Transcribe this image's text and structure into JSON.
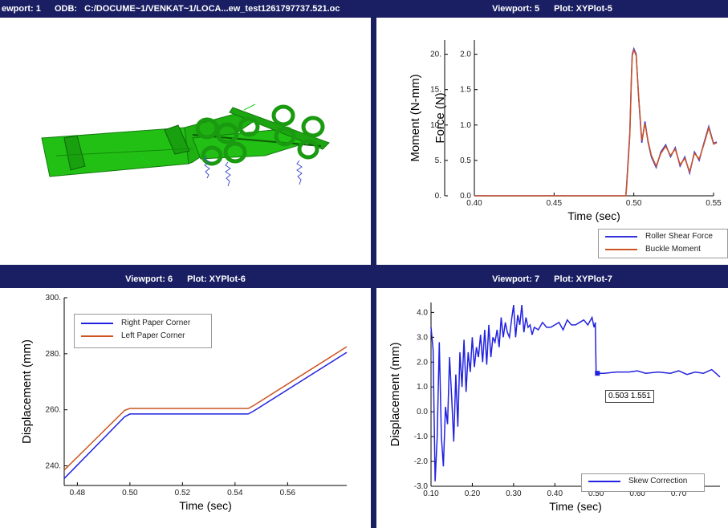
{
  "viewports": {
    "vp1": {
      "label": "ewport: 1",
      "odb_label": "ODB:",
      "path": "C:/DOCUME~1/VENKAT~1/LOCA...ew_test1261797737.521.oc"
    },
    "vp5": {
      "viewport": "Viewport: 5",
      "plot": "Plot: XYPlot-5"
    },
    "vp6": {
      "viewport": "Viewport: 6",
      "plot": "Plot: XYPlot-6"
    },
    "vp7": {
      "viewport": "Viewport: 7",
      "plot": "Plot: XYPlot-7"
    }
  },
  "colors": {
    "title_bar": "#1a1f63",
    "model_green": "#22c014",
    "blue": "#2222e0",
    "orange": "#cc5522",
    "spring": "#4455cc"
  },
  "chart_data": [
    {
      "id": "xyplot5",
      "type": "line",
      "xlabel": "Time (sec)",
      "ylabel": "Force (N)",
      "ylabel2": "Moment (N-mm)",
      "xticks": [
        "0.40",
        "0.45",
        "0.50",
        "0.55"
      ],
      "yticks": [
        "0.0",
        "0.5",
        "1.0",
        "1.5",
        "2.0"
      ],
      "yticks2": [
        "0.",
        "5.",
        "10.",
        "15.",
        "20."
      ],
      "xlim": [
        0.4,
        0.55
      ],
      "ylim": [
        0,
        2.2
      ],
      "legend_position": "bottom-right",
      "series": [
        {
          "name": "Roller Shear Force",
          "color": "#3333dd",
          "x": [
            0.4,
            0.44,
            0.47,
            0.495,
            0.4955,
            0.4975,
            0.4985,
            0.499,
            0.5,
            0.5015,
            0.503,
            0.505,
            0.507,
            0.509,
            0.511,
            0.514,
            0.517,
            0.52,
            0.523,
            0.526,
            0.529,
            0.532,
            0.535,
            0.538,
            0.541,
            0.544,
            0.547,
            0.55,
            0.552
          ],
          "y": [
            0.0,
            0.0,
            0.0,
            0.0,
            0.15,
            0.9,
            1.7,
            2.0,
            2.08,
            2.0,
            1.4,
            0.75,
            1.05,
            0.75,
            0.55,
            0.4,
            0.62,
            0.72,
            0.55,
            0.68,
            0.42,
            0.55,
            0.32,
            0.62,
            0.5,
            0.75,
            0.98,
            0.74,
            0.76
          ]
        },
        {
          "name": "Buckle Moment",
          "color": "#cc5522",
          "x": [
            0.4,
            0.44,
            0.47,
            0.495,
            0.4955,
            0.4975,
            0.4985,
            0.499,
            0.5,
            0.5015,
            0.503,
            0.505,
            0.507,
            0.509,
            0.511,
            0.514,
            0.517,
            0.52,
            0.523,
            0.526,
            0.529,
            0.532,
            0.535,
            0.538,
            0.541,
            0.544,
            0.547,
            0.55,
            0.552
          ],
          "y": [
            0.0,
            0.0,
            0.0,
            0.0,
            0.12,
            0.85,
            1.65,
            1.98,
            2.06,
            1.98,
            1.42,
            0.78,
            1.02,
            0.77,
            0.57,
            0.42,
            0.6,
            0.7,
            0.57,
            0.66,
            0.44,
            0.53,
            0.34,
            0.6,
            0.52,
            0.73,
            0.96,
            0.73,
            0.75
          ]
        }
      ]
    },
    {
      "id": "xyplot6",
      "type": "line",
      "xlabel": "Time (sec)",
      "ylabel": "Displacement (mm)",
      "xticks": [
        "0.48",
        "0.50",
        "0.52",
        "0.54",
        "0.56"
      ],
      "yticks": [
        "240.",
        "260.",
        "280.",
        "300."
      ],
      "xlim": [
        0.475,
        0.5825
      ],
      "ylim": [
        233,
        300
      ],
      "legend_position": "top-left",
      "series": [
        {
          "name": "Right Paper Corner",
          "color": "#2222e0",
          "x": [
            0.475,
            0.498,
            0.5,
            0.545,
            0.547,
            0.5825
          ],
          "y": [
            235.5,
            257.5,
            258.5,
            258.5,
            259.5,
            280.5
          ]
        },
        {
          "name": "Left Paper Corner",
          "color": "#cc5522",
          "x": [
            0.475,
            0.498,
            0.5,
            0.545,
            0.547,
            0.5825
          ],
          "y": [
            238.5,
            259.8,
            260.5,
            260.5,
            261.5,
            282.5
          ]
        }
      ]
    },
    {
      "id": "xyplot7",
      "type": "line",
      "xlabel": "Time (sec)",
      "ylabel": "Displacement (mm)",
      "xticks": [
        "0.10",
        "0.20",
        "0.30",
        "0.40",
        "0.50",
        "0.60",
        "0.70"
      ],
      "yticks": [
        "-3.0",
        "-2.0",
        "-1.0",
        "0.0",
        "1.0",
        "2.0",
        "3.0",
        "4.0"
      ],
      "xlim": [
        0.1,
        0.8
      ],
      "ylim": [
        -3,
        4.4
      ],
      "legend_position": "bottom-right",
      "probe_label": "0.503 1.551",
      "series": [
        {
          "name": "Skew Correction",
          "color": "#2222e0",
          "x": [
            0.1,
            0.105,
            0.11,
            0.115,
            0.12,
            0.125,
            0.13,
            0.135,
            0.14,
            0.145,
            0.15,
            0.155,
            0.16,
            0.165,
            0.17,
            0.175,
            0.18,
            0.185,
            0.19,
            0.195,
            0.2,
            0.205,
            0.21,
            0.215,
            0.22,
            0.225,
            0.23,
            0.235,
            0.24,
            0.245,
            0.25,
            0.255,
            0.26,
            0.265,
            0.27,
            0.275,
            0.28,
            0.285,
            0.29,
            0.295,
            0.3,
            0.305,
            0.31,
            0.315,
            0.32,
            0.325,
            0.33,
            0.335,
            0.34,
            0.345,
            0.35,
            0.36,
            0.37,
            0.38,
            0.39,
            0.4,
            0.41,
            0.42,
            0.43,
            0.44,
            0.45,
            0.46,
            0.47,
            0.48,
            0.49,
            0.495,
            0.498,
            0.5,
            0.503,
            0.52,
            0.55,
            0.58,
            0.6,
            0.62,
            0.65,
            0.68,
            0.7,
            0.72,
            0.74,
            0.76,
            0.78,
            0.8
          ],
          "y": [
            3.4,
            2.5,
            -2.8,
            -1.0,
            2.8,
            -1.0,
            -2.2,
            0.2,
            -0.5,
            2.2,
            0.6,
            -1.2,
            1.5,
            -0.6,
            2.4,
            1.0,
            2.9,
            0.8,
            2.4,
            1.6,
            3.0,
            1.8,
            2.6,
            2.2,
            3.1,
            2.0,
            3.3,
            1.9,
            3.5,
            2.2,
            3.0,
            2.8,
            3.3,
            2.6,
            3.8,
            3.0,
            3.6,
            3.2,
            3.0,
            3.7,
            4.3,
            3.0,
            3.9,
            3.5,
            4.3,
            3.2,
            3.8,
            3.4,
            3.5,
            3.1,
            3.4,
            3.3,
            3.6,
            3.4,
            3.4,
            3.5,
            3.6,
            3.3,
            3.7,
            3.5,
            3.5,
            3.6,
            3.7,
            3.5,
            3.8,
            3.4,
            3.6,
            1.55,
            1.55,
            1.55,
            1.6,
            1.6,
            1.65,
            1.55,
            1.6,
            1.55,
            1.65,
            1.5,
            1.6,
            1.55,
            1.7,
            1.4
          ]
        }
      ]
    }
  ]
}
